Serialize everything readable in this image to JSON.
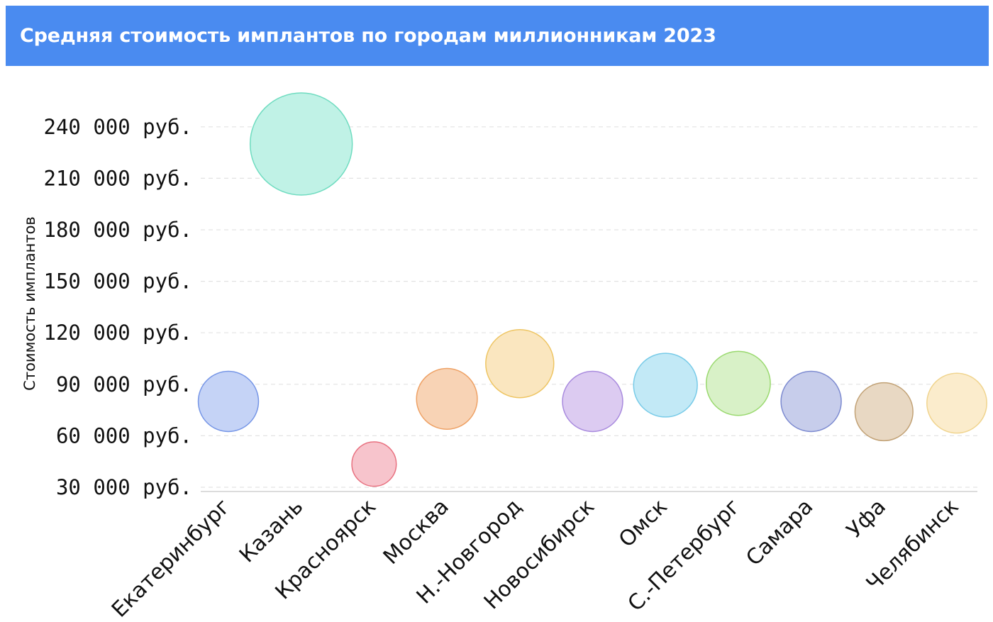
{
  "header": {
    "title": "Средняя стоимость имплантов по городам миллионникам 2023",
    "background_color": "#4a8bf0"
  },
  "chart_data": {
    "type": "scatter",
    "title": "Средняя стоимость имплантов по городам миллионникам 2023",
    "ylabel": "Стоимость имплантов",
    "xlabel": "",
    "ylim": [
      25000,
      255000
    ],
    "y_ticks": [
      30000,
      60000,
      90000,
      120000,
      150000,
      180000,
      210000,
      240000
    ],
    "y_tick_labels": [
      "30 000 руб.",
      "60 000 руб.",
      "90 000 руб.",
      "120 000 руб.",
      "150 000 руб.",
      "180 000 руб.",
      "210 000 руб.",
      "240 000 руб."
    ],
    "grid": true,
    "categories": [
      "Екатеринбург",
      "Казань",
      "Красноярск",
      "Москва",
      "Н.-Новгород",
      "Новосибирск",
      "Омск",
      "С.-Петербург",
      "Самара",
      "Уфа",
      "Челябинск"
    ],
    "values": [
      80000,
      230000,
      43500,
      81500,
      102000,
      80000,
      89500,
      90500,
      80000,
      74000,
      79000
    ],
    "colors": [
      {
        "fill": "#c5d3f6",
        "stroke": "#7595e6"
      },
      {
        "fill": "#c0f2e6",
        "stroke": "#6fdcc0"
      },
      {
        "fill": "#f7c4cc",
        "stroke": "#e8707f"
      },
      {
        "fill": "#f8d3b5",
        "stroke": "#eea165"
      },
      {
        "fill": "#fae6bf",
        "stroke": "#eec563"
      },
      {
        "fill": "#dccbf1",
        "stroke": "#a88ade"
      },
      {
        "fill": "#c2e9f6",
        "stroke": "#78cbe8"
      },
      {
        "fill": "#d8f1c7",
        "stroke": "#9ad96f"
      },
      {
        "fill": "#c7cdeb",
        "stroke": "#7c8ad0"
      },
      {
        "fill": "#e8d8c3",
        "stroke": "#c2a276"
      },
      {
        "fill": "#fbeccc",
        "stroke": "#f0d48e"
      }
    ]
  }
}
